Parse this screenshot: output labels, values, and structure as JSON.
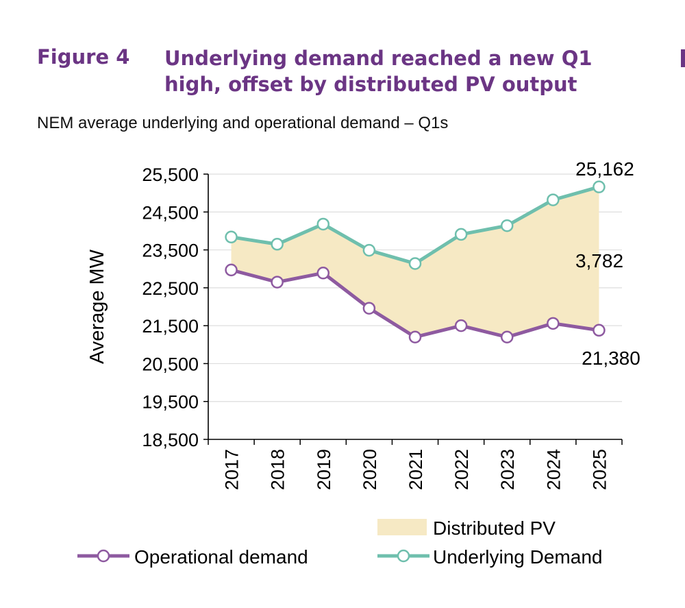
{
  "figure": {
    "label": "Figure 4",
    "title": "Underlying demand reached a new Q1 high, offset by distributed PV output",
    "subtitle": "NEM average underlying and operational demand – Q1s"
  },
  "chart_data": {
    "type": "line",
    "ylabel": "Average MW",
    "ylim": [
      18500,
      25500
    ],
    "yticks": [
      18500,
      19500,
      20500,
      21500,
      22500,
      23500,
      24500,
      25500
    ],
    "ytick_labels": [
      "18,500",
      "19,500",
      "20,500",
      "21,500",
      "22,500",
      "23,500",
      "24,500",
      "25,500"
    ],
    "categories": [
      "2017",
      "2018",
      "2019",
      "2020",
      "2021",
      "2022",
      "2023",
      "2024",
      "2025"
    ],
    "grid": true,
    "series": [
      {
        "name": "Operational demand",
        "color": "#8e5aa0",
        "values": [
          22970,
          22650,
          22890,
          21960,
          21200,
          21500,
          21200,
          21560,
          21380
        ]
      },
      {
        "name": "Underlying Demand",
        "color": "#6fbfad",
        "values": [
          23840,
          23650,
          24180,
          23490,
          23140,
          23910,
          24140,
          24820,
          25162
        ]
      }
    ],
    "area": {
      "name": "Distributed PV",
      "color": "#f6e9c4"
    },
    "annotations": [
      {
        "text": "25,162"
      },
      {
        "text": "3,782"
      },
      {
        "text": "21,380"
      }
    ],
    "legend_position": "bottom"
  }
}
